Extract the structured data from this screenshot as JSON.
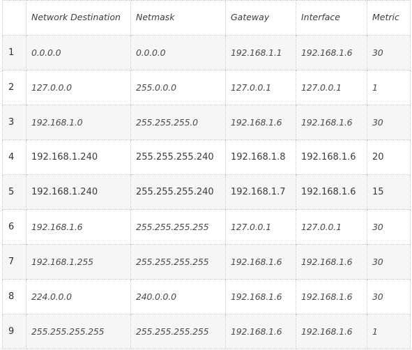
{
  "table": {
    "headers": [
      "",
      "Network Destination",
      "Netmask",
      "Gateway",
      "Interface",
      "Metric"
    ],
    "rows": [
      {
        "num": "1",
        "dest": "0.0.0.0",
        "mask": "0.0.0.0",
        "gateway": "192.168.1.1",
        "iface": "192.168.1.6",
        "metric": "30",
        "italic": true
      },
      {
        "num": "2",
        "dest": "127.0.0.0",
        "mask": "255.0.0.0",
        "gateway": "127.0.0.1",
        "iface": "127.0.0.1",
        "metric": "1",
        "italic": true
      },
      {
        "num": "3",
        "dest": "192.168.1.0",
        "mask": "255.255.255.0",
        "gateway": "192.168.1.6",
        "iface": "192.168.1.6",
        "metric": "30",
        "italic": true
      },
      {
        "num": "4",
        "dest": "192.168.1.240",
        "mask": "255.255.255.240",
        "gateway": "192.168.1.8",
        "iface": "192.168.1.6",
        "metric": "20",
        "italic": false
      },
      {
        "num": "5",
        "dest": "192.168.1.240",
        "mask": "255.255.255.240",
        "gateway": "192.168.1.7",
        "iface": "192.168.1.6",
        "metric": "15",
        "italic": false
      },
      {
        "num": "6",
        "dest": "192.168.1.6",
        "mask": "255.255.255.255",
        "gateway": "127.0.0.1",
        "iface": "127.0.0.1",
        "metric": "30",
        "italic": true
      },
      {
        "num": "7",
        "dest": "192.168.1.255",
        "mask": "255.255.255.255",
        "gateway": "192.168.1.6",
        "iface": "192.168.1.6",
        "metric": "30",
        "italic": true
      },
      {
        "num": "8",
        "dest": "224.0.0.0",
        "mask": "240.0.0.0",
        "gateway": "192.168.1.6",
        "iface": "192.168.1.6",
        "metric": "30",
        "italic": true
      },
      {
        "num": "9",
        "dest": "255.255.255.255",
        "mask": "255.255.255.255",
        "gateway": "192.168.1.6",
        "iface": "192.168.1.6",
        "metric": "1",
        "italic": true
      }
    ]
  },
  "colors": {
    "row_alt": "#f6f6f6",
    "border": "#c4c4c4",
    "text": "#3a3a3a"
  }
}
